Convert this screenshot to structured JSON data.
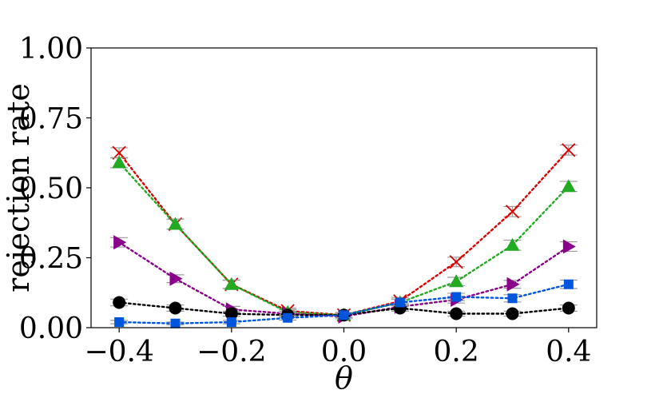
{
  "chart_data": {
    "type": "line",
    "title": "",
    "xlabel": "θ",
    "ylabel": "rejection rate",
    "xlim": [
      -0.45,
      0.45
    ],
    "ylim": [
      0.0,
      1.0
    ],
    "xticks": [
      -0.4,
      -0.2,
      0.0,
      0.2,
      0.4
    ],
    "xtick_labels": [
      "−0.4",
      "−0.2",
      "0.0",
      "0.2",
      "0.4"
    ],
    "yticks": [
      0.0,
      0.25,
      0.5,
      0.75,
      1.0
    ],
    "ytick_labels": [
      "0.00",
      "0.25",
      "0.50",
      "0.75",
      "1.00"
    ],
    "grid": false,
    "x": [
      -0.4,
      -0.3,
      -0.2,
      -0.1,
      0.0,
      0.1,
      0.2,
      0.3,
      0.4
    ],
    "series": [
      {
        "color": "#dd0000",
        "marker": "x",
        "values": [
          0.625,
          0.37,
          0.155,
          0.06,
          0.045,
          0.095,
          0.235,
          0.415,
          0.635
        ],
        "errors": [
          0.018,
          0.018,
          0.015,
          0.01,
          0.009,
          0.013,
          0.017,
          0.018,
          0.018
        ]
      },
      {
        "color": "#22aa22",
        "marker": "triangle-up",
        "values": [
          0.59,
          0.37,
          0.155,
          0.055,
          0.045,
          0.09,
          0.165,
          0.295,
          0.505
        ],
        "errors": [
          0.018,
          0.018,
          0.015,
          0.01,
          0.009,
          0.012,
          0.015,
          0.018,
          0.018
        ]
      },
      {
        "color": "#8b008b",
        "marker": "triangle-right",
        "values": [
          0.305,
          0.175,
          0.065,
          0.05,
          0.04,
          0.075,
          0.1,
          0.155,
          0.29
        ],
        "errors": [
          0.017,
          0.014,
          0.011,
          0.009,
          0.008,
          0.011,
          0.012,
          0.014,
          0.017
        ]
      },
      {
        "color": "#000000",
        "marker": "circle",
        "values": [
          0.09,
          0.07,
          0.05,
          0.045,
          0.045,
          0.07,
          0.05,
          0.05,
          0.07
        ],
        "errors": [
          0.012,
          0.011,
          0.009,
          0.009,
          0.009,
          0.011,
          0.009,
          0.009,
          0.011
        ]
      },
      {
        "color": "#0055dd",
        "marker": "square",
        "values": [
          0.02,
          0.015,
          0.02,
          0.035,
          0.045,
          0.09,
          0.11,
          0.105,
          0.155
        ],
        "errors": [
          0.006,
          0.005,
          0.006,
          0.008,
          0.009,
          0.012,
          0.013,
          0.013,
          0.015
        ]
      }
    ]
  }
}
